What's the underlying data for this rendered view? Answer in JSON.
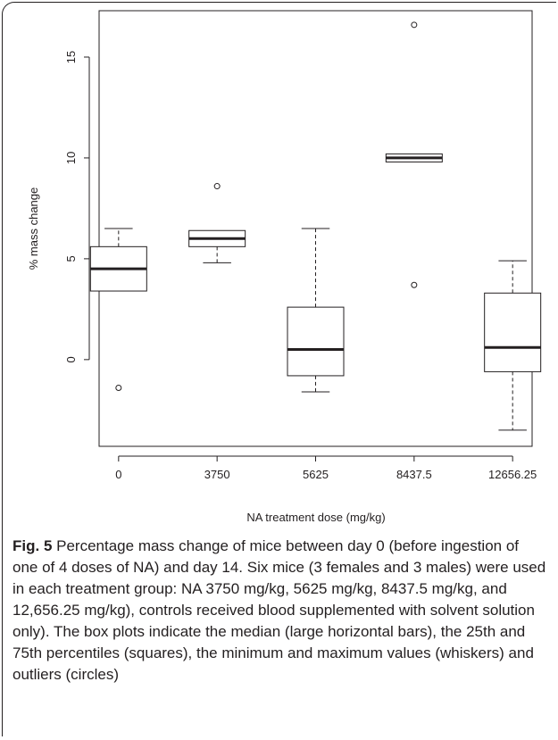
{
  "chart_data": {
    "type": "box",
    "xlabel": "NA treatment dose (mg/kg)",
    "ylabel": "% mass change",
    "ylim": [
      -4.3,
      17.3
    ],
    "yticks": [
      0,
      5,
      10,
      15
    ],
    "categories": [
      "0",
      "3750",
      "5625",
      "8437.5",
      "12656.25"
    ],
    "boxes": [
      {
        "category": "0",
        "whisker_low": 3.4,
        "q1": 3.4,
        "median": 4.5,
        "q3": 5.6,
        "whisker_high": 6.5,
        "outliers": [
          -1.4
        ]
      },
      {
        "category": "3750",
        "whisker_low": 4.8,
        "q1": 5.6,
        "median": 6.0,
        "q3": 6.4,
        "whisker_high": 6.4,
        "outliers": [
          8.6
        ]
      },
      {
        "category": "5625",
        "whisker_low": -1.6,
        "q1": -0.8,
        "median": 0.5,
        "q3": 2.6,
        "whisker_high": 6.5,
        "outliers": []
      },
      {
        "category": "8437.5",
        "whisker_low": 9.8,
        "q1": 9.8,
        "median": 10.0,
        "q3": 10.2,
        "whisker_high": 10.2,
        "outliers": [
          16.6,
          3.7
        ]
      },
      {
        "category": "12656.25",
        "whisker_low": -3.5,
        "q1": -0.6,
        "median": 0.6,
        "q3": 3.3,
        "whisker_high": 4.9,
        "outliers": []
      }
    ]
  },
  "caption": {
    "label": "Fig. 5",
    "text": "Percentage mass change of mice between day 0 (before ingestion of one of 4 doses of NA) and day 14. Six mice (3 females and 3 males) were used in each treatment group: NA 3750 mg/kg, 5625 mg/kg, 8437.5 mg/kg, and 12,656.25 mg/kg), controls received blood supplemented with solvent solution only). The box plots indicate the median (large horizontal bars), the 25th and 75th percentiles (squares), the minimum and maximum values (whiskers) and outliers (circles)"
  }
}
